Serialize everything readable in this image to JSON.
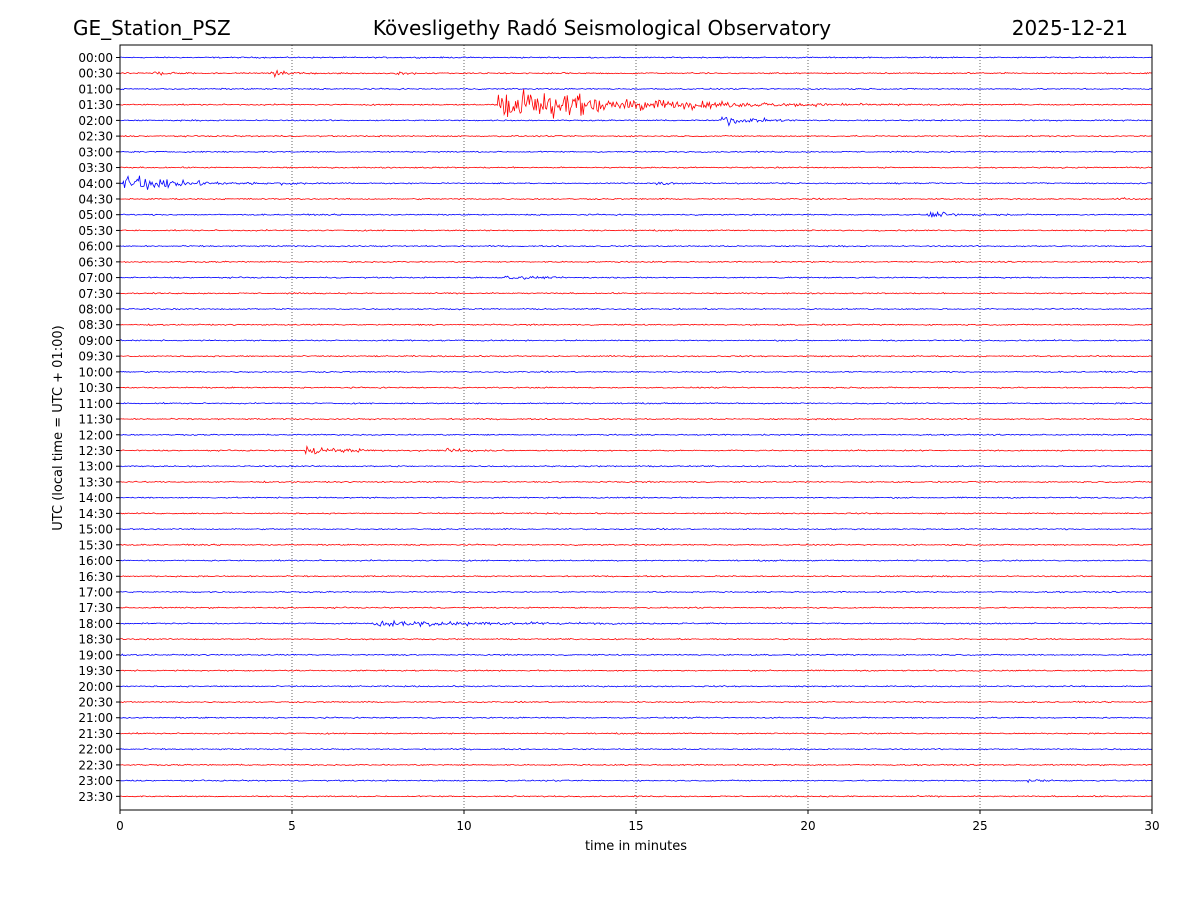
{
  "header": {
    "station": "GE_Station_PSZ",
    "title": "Kövesligethy Radó Seismological Observatory",
    "date": "2025-12-21"
  },
  "colors": {
    "trace_a": "#0000ff",
    "trace_b": "#ff0000",
    "axis": "#000000",
    "grid": "#000000"
  },
  "chart_data": {
    "type": "line",
    "title": "Kövesligethy Radó Seismological Observatory",
    "xlabel": "time in minutes",
    "ylabel": "UTC (local time = UTC + 01:00)",
    "xlim": [
      0,
      30
    ],
    "xticks": [
      0,
      5,
      10,
      15,
      20,
      25,
      30
    ],
    "xtick_labels": [
      "0",
      "5",
      "10",
      "15",
      "20",
      "25",
      "30"
    ],
    "vertical_gridlines_at": [
      5,
      10,
      15,
      20,
      25
    ],
    "rows": [
      "00:00",
      "00:30",
      "01:00",
      "01:30",
      "02:00",
      "02:30",
      "03:00",
      "03:30",
      "04:00",
      "04:30",
      "05:00",
      "05:30",
      "06:00",
      "06:30",
      "07:00",
      "07:30",
      "08:00",
      "08:30",
      "09:00",
      "09:30",
      "10:00",
      "10:30",
      "11:00",
      "11:30",
      "12:00",
      "12:30",
      "13:00",
      "13:30",
      "14:00",
      "14:30",
      "15:00",
      "15:30",
      "16:00",
      "16:30",
      "17:00",
      "17:30",
      "18:00",
      "18:30",
      "19:00",
      "19:30",
      "20:00",
      "20:30",
      "21:00",
      "21:30",
      "22:00",
      "22:30",
      "23:00",
      "23:30"
    ],
    "row_colors": [
      "blue",
      "red"
    ],
    "events": [
      {
        "row": "00:30",
        "start_min": 1.0,
        "peak_amp": 0.3,
        "decay_min": 0.6
      },
      {
        "row": "00:30",
        "start_min": 4.4,
        "peak_amp": 0.45,
        "decay_min": 0.6
      },
      {
        "row": "00:30",
        "start_min": 8.0,
        "peak_amp": 0.25,
        "decay_min": 0.6
      },
      {
        "row": "01:30",
        "start_min": 11.0,
        "peak_amp": 2.2,
        "decay_min": 3.5
      },
      {
        "row": "02:00",
        "start_min": 17.5,
        "peak_amp": 0.55,
        "decay_min": 1.2
      },
      {
        "row": "04:00",
        "start_min": 0.1,
        "peak_amp": 1.0,
        "decay_min": 1.6
      },
      {
        "row": "04:00",
        "start_min": 4.7,
        "peak_amp": 0.25,
        "decay_min": 0.6
      },
      {
        "row": "04:00",
        "start_min": 15.6,
        "peak_amp": 0.25,
        "decay_min": 0.6
      },
      {
        "row": "04:30",
        "start_min": 29.0,
        "peak_amp": 0.2,
        "decay_min": 0.6
      },
      {
        "row": "05:00",
        "start_min": 23.5,
        "peak_amp": 0.3,
        "decay_min": 1.2
      },
      {
        "row": "07:00",
        "start_min": 11.2,
        "peak_amp": 0.35,
        "decay_min": 0.8
      },
      {
        "row": "12:30",
        "start_min": 5.4,
        "peak_amp": 0.55,
        "decay_min": 1.2
      },
      {
        "row": "12:30",
        "start_min": 9.5,
        "peak_amp": 0.3,
        "decay_min": 0.8
      },
      {
        "row": "18:00",
        "start_min": 7.4,
        "peak_amp": 0.5,
        "decay_min": 3.5
      },
      {
        "row": "23:00",
        "start_min": 26.3,
        "peak_amp": 0.25,
        "decay_min": 0.5
      }
    ]
  }
}
